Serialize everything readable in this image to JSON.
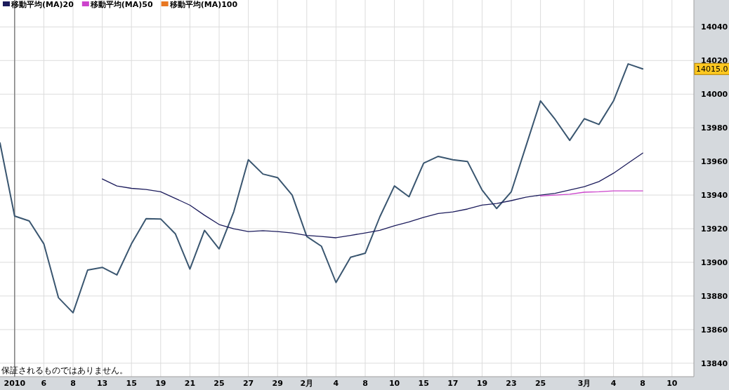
{
  "chart_data": {
    "type": "line",
    "categories": [
      null,
      "2010",
      null,
      "6",
      null,
      "8",
      null,
      "13",
      null,
      "15",
      null,
      "19",
      null,
      "21",
      null,
      "25",
      null,
      "27",
      null,
      "29",
      null,
      "2月",
      null,
      "4",
      null,
      "8",
      null,
      "10",
      null,
      "15",
      null,
      "17",
      null,
      "19",
      null,
      "23",
      null,
      "25",
      null,
      null,
      "3月",
      null,
      "4",
      null,
      "8",
      null,
      "10"
    ],
    "series": [
      {
        "color": "#3a5670",
        "values": [
          13971,
          13927.5,
          13924.6,
          13911,
          13879,
          13870,
          13895.4,
          13897,
          13892.5,
          13911,
          13926,
          13925.8,
          13917,
          13896,
          13919,
          13908,
          13930,
          13961,
          13952.5,
          13950.4,
          13940,
          13915.4,
          13909.6,
          13888,
          13903,
          13905.4,
          13927,
          13945.4,
          13939,
          13959,
          13963,
          13961,
          13960,
          13943,
          13932,
          13942,
          13969,
          13996,
          13985,
          13972.5,
          13985.4,
          13982,
          13996,
          14018,
          14015,
          null,
          null
        ]
      },
      {
        "name": "移動平均(MA)20",
        "color": "#1c1c5c",
        "values": [
          null,
          null,
          null,
          null,
          null,
          null,
          null,
          13949.6,
          13945.4,
          13944,
          13943.3,
          13942,
          13938,
          13934,
          13928,
          13922.5,
          13920,
          13918.3,
          13918.8,
          13918.3,
          13917.5,
          13916,
          13915.4,
          13914.6,
          13916,
          13917.5,
          13919,
          13921.7,
          13924,
          13926.7,
          13929,
          13930,
          13931.7,
          13934,
          13935,
          13936.7,
          13938.7,
          13940,
          13941,
          13943,
          13945,
          13948,
          13953,
          13959,
          13965,
          null,
          null
        ]
      },
      {
        "name": "移動平均(MA)50",
        "color": "#cc44cc",
        "values": [
          null,
          null,
          null,
          null,
          null,
          null,
          null,
          null,
          null,
          null,
          null,
          null,
          null,
          null,
          null,
          null,
          null,
          null,
          null,
          null,
          null,
          null,
          null,
          null,
          null,
          null,
          null,
          null,
          null,
          null,
          null,
          null,
          null,
          null,
          null,
          null,
          null,
          13939.5,
          13940,
          13940.5,
          13941.7,
          13942,
          13942.5,
          13942.5,
          13942.5,
          null,
          null
        ]
      },
      {
        "name": "移動平均(MA)100",
        "color": "#e87722",
        "values": [
          null,
          null,
          null,
          null,
          null,
          null,
          null,
          null,
          null,
          null,
          null,
          null,
          null,
          null,
          null,
          null,
          null,
          null,
          null,
          null,
          null,
          null,
          null,
          null,
          null,
          null,
          null,
          null,
          null,
          null,
          null,
          null,
          null,
          null,
          null,
          null,
          null,
          null,
          null,
          null,
          null,
          null,
          null,
          null,
          null,
          null,
          null
        ]
      }
    ],
    "ylim": [
      13832,
      14056
    ],
    "yticks": [
      13840,
      13860,
      13880,
      13900,
      13920,
      13940,
      13960,
      13980,
      14000,
      14020,
      14040
    ],
    "grid": true,
    "legend": "top left",
    "ref_lines": [
      {
        "axis": "x",
        "value": "2010",
        "color": "#808080"
      }
    ],
    "annotations": [
      "保証されるものではありません。",
      "14015.0"
    ]
  }
}
